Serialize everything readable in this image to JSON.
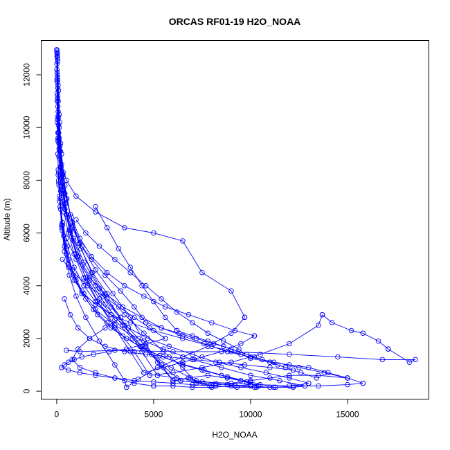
{
  "chart_data": {
    "type": "line",
    "title": "ORCAS RF01-19 H2O_NOAA",
    "xlabel": "H2O_NOAA",
    "ylabel": "Altitude (m)",
    "xlim": [
      -800,
      19200
    ],
    "ylim": [
      -300,
      13300
    ],
    "x_ticks": [
      0,
      5000,
      10000,
      15000
    ],
    "x_tick_labels": [
      "0",
      "5000",
      "10000",
      "15000"
    ],
    "y_ticks": [
      0,
      2000,
      4000,
      6000,
      8000,
      10000,
      12000
    ],
    "y_tick_labels": [
      "0",
      "2000",
      "4000",
      "6000",
      "8000",
      "10000",
      "12000"
    ],
    "grid": false,
    "series_color": "#0000ff",
    "marker": "open-circle",
    "series": [
      {
        "x": [
          5,
          8,
          12,
          20,
          30,
          45,
          60,
          80,
          120,
          180,
          260,
          400,
          650,
          1000,
          1500,
          2200,
          3000,
          3500,
          3600
        ],
        "y": [
          12950,
          12400,
          11800,
          11000,
          10200,
          9500,
          9000,
          8400,
          7800,
          7000,
          6200,
          5300,
          4400,
          3600,
          2800,
          1900,
          1000,
          400,
          150
        ]
      },
      {
        "x": [
          3600,
          4200,
          5200,
          6500,
          7800,
          9000,
          9700
        ],
        "y": [
          150,
          450,
          900,
          1300,
          1700,
          2200,
          2800
        ]
      },
      {
        "x": [
          9700,
          9000,
          7500,
          6500,
          5000,
          3500,
          2000,
          1000,
          500,
          250,
          120,
          60
        ],
        "y": [
          2800,
          3800,
          4500,
          5700,
          6000,
          6200,
          6800,
          7400,
          8000,
          8600,
          9200,
          9800
        ]
      },
      {
        "x": [
          10,
          15,
          25,
          40,
          70,
          110,
          170,
          250,
          380,
          600,
          900,
          1400,
          2100,
          3000,
          4000,
          4800
        ],
        "y": [
          12900,
          12200,
          11300,
          10400,
          9600,
          8900,
          8200,
          7500,
          6800,
          6000,
          5200,
          4300,
          3400,
          2500,
          1500,
          600
        ]
      },
      {
        "x": [
          4800,
          6000,
          7500,
          9000,
          10500,
          12000,
          13500,
          13700
        ],
        "y": [
          600,
          700,
          900,
          1100,
          1400,
          1800,
          2500,
          2900
        ]
      },
      {
        "x": [
          13700,
          14200,
          15200,
          15800,
          16600,
          17100
        ],
        "y": [
          2900,
          2600,
          2300,
          2200,
          1900,
          1600
        ]
      },
      {
        "x": [
          17100,
          18200,
          18500,
          16800,
          14500,
          12000,
          9000,
          6000,
          3000,
          1200,
          500
        ],
        "y": [
          1600,
          1100,
          1200,
          1200,
          1300,
          1400,
          1500,
          1500,
          1550,
          1500,
          1550
        ]
      },
      {
        "x": [
          30,
          50,
          80,
          130,
          200,
          320,
          500,
          800,
          1300,
          2000,
          2900,
          3800,
          4500,
          5200,
          6000
        ],
        "y": [
          12800,
          11900,
          11000,
          10000,
          9100,
          8200,
          7300,
          6400,
          5500,
          4600,
          3700,
          2800,
          1900,
          1100,
          400
        ]
      },
      {
        "x": [
          6000,
          7500,
          9000,
          10500,
          12000,
          13500,
          15000,
          15800
        ],
        "y": [
          400,
          350,
          300,
          250,
          200,
          200,
          250,
          300
        ]
      },
      {
        "x": [
          15800,
          15000,
          14000,
          13000,
          12000,
          11000,
          10000,
          9500
        ],
        "y": [
          300,
          500,
          700,
          900,
          1000,
          1100,
          1250,
          1400
        ]
      },
      {
        "x": [
          9500,
          8000,
          6500,
          5000,
          3800,
          2800,
          2000,
          1400,
          900,
          600,
          400,
          250,
          150,
          80
        ],
        "y": [
          1400,
          1700,
          2000,
          2300,
          2600,
          2900,
          3300,
          3700,
          4200,
          4800,
          5500,
          6300,
          7200,
          8200
        ]
      },
      {
        "x": [
          20,
          35,
          60,
          100,
          160,
          260,
          420,
          700,
          1100,
          1700,
          2500,
          3400,
          4400,
          5400,
          6400
        ],
        "y": [
          12700,
          11800,
          10800,
          9800,
          8800,
          7800,
          6900,
          6000,
          5100,
          4200,
          3300,
          2500,
          1700,
          1000,
          400
        ]
      },
      {
        "x": [
          6400,
          7600,
          8800,
          10000,
          11000,
          12200,
          12800
        ],
        "y": [
          400,
          300,
          250,
          200,
          150,
          150,
          200
        ]
      },
      {
        "x": [
          12800,
          11500,
          10000,
          8500,
          7000,
          5500,
          4200,
          3000,
          2000,
          1300,
          800,
          500,
          300,
          180,
          100
        ],
        "y": [
          200,
          400,
          600,
          900,
          1200,
          1600,
          2000,
          2500,
          3100,
          3800,
          4600,
          5400,
          6300,
          7300,
          8300
        ]
      },
      {
        "x": [
          40,
          70,
          120,
          200,
          330,
          520,
          820,
          1250,
          1850,
          2600,
          3500,
          4500,
          5500,
          6500,
          7200
        ],
        "y": [
          12600,
          11600,
          10500,
          9400,
          8300,
          7300,
          6300,
          5400,
          4500,
          3700,
          2900,
          2200,
          1500,
          900,
          300
        ]
      },
      {
        "x": [
          7200,
          8200,
          9300,
          10300,
          11300,
          12200,
          13000
        ],
        "y": [
          300,
          200,
          150,
          150,
          150,
          200,
          300
        ]
      },
      {
        "x": [
          13000,
          12000,
          10800,
          9500,
          8200,
          7000,
          5800,
          4700,
          3700,
          2800,
          2000,
          1400,
          900,
          550,
          300,
          150
        ],
        "y": [
          300,
          500,
          700,
          900,
          1100,
          1400,
          1700,
          2000,
          2400,
          2900,
          3400,
          4000,
          4700,
          5500,
          6400,
          7400
        ]
      },
      {
        "x": [
          15,
          30,
          55,
          90,
          150,
          250,
          400,
          650,
          1000,
          1500,
          2200,
          3000,
          3900,
          4900,
          5900,
          6900,
          7900
        ],
        "y": [
          12850,
          12000,
          11100,
          10100,
          9100,
          8100,
          7100,
          6100,
          5200,
          4300,
          3500,
          2700,
          2000,
          1400,
          900,
          500,
          200
        ]
      },
      {
        "x": [
          7900,
          9000,
          10000,
          11000,
          12000,
          13500,
          15000
        ],
        "y": [
          200,
          300,
          400,
          500,
          600,
          600,
          500
        ]
      },
      {
        "x": [
          15000,
          13800,
          12500,
          11200,
          10000,
          8800,
          7600,
          6500,
          5400,
          4400,
          3400,
          2500,
          1700,
          1000,
          500
        ],
        "y": [
          500,
          700,
          900,
          1100,
          1300,
          1500,
          1800,
          2100,
          2400,
          2800,
          3200,
          3700,
          4300,
          5000,
          5800
        ]
      },
      {
        "x": [
          25,
          45,
          75,
          125,
          210,
          340,
          550,
          880,
          1350,
          2000,
          2800,
          3700,
          4600,
          5400,
          6000
        ],
        "y": [
          12750,
          11700,
          10600,
          9600,
          8500,
          7500,
          6600,
          5700,
          4800,
          4000,
          3200,
          2400,
          1700,
          1000,
          400
        ]
      },
      {
        "x": [
          6000,
          6800,
          7800,
          8800,
          9800,
          10400
        ],
        "y": [
          400,
          500,
          600,
          500,
          350,
          200
        ]
      },
      {
        "x": [
          10400,
          9500,
          8500,
          7500,
          6500,
          5500,
          4500,
          3600,
          2800,
          2100,
          1500,
          1000,
          600,
          350,
          200,
          100
        ],
        "y": [
          200,
          400,
          600,
          800,
          1000,
          1300,
          1600,
          2000,
          2400,
          2900,
          3500,
          4200,
          5000,
          5900,
          6900,
          7900
        ]
      },
      {
        "x": [
          50,
          90,
          150,
          250,
          420,
          700,
          1150,
          1800,
          2600,
          3500,
          4400,
          5200
        ],
        "y": [
          12500,
          11400,
          10200,
          9000,
          7800,
          6700,
          5600,
          4500,
          3500,
          2500,
          1500,
          600
        ]
      },
      {
        "x": [
          5200,
          6200,
          7200,
          8200,
          9200,
          10200,
          11200
        ],
        "y": [
          600,
          500,
          400,
          300,
          200,
          150,
          150
        ]
      },
      {
        "x": [
          11200,
          10000,
          8800,
          7600,
          6400,
          5300,
          4300,
          3400,
          2600,
          1900,
          1300,
          850,
          500,
          280
        ],
        "y": [
          150,
          350,
          550,
          800,
          1050,
          1350,
          1700,
          2100,
          2600,
          3100,
          3700,
          4400,
          5200,
          6100
        ]
      },
      {
        "x": [
          35,
          60,
          100,
          170,
          280,
          450,
          700,
          1050,
          1550,
          2200,
          3000,
          3800,
          4500
        ],
        "y": [
          12650,
          11500,
          10400,
          9300,
          8200,
          7100,
          6100,
          5100,
          4200,
          3300,
          2400,
          1500,
          700
        ]
      },
      {
        "x": [
          4500,
          5500,
          6500,
          7500,
          8500,
          9500,
          10200
        ],
        "y": [
          700,
          900,
          1100,
          1300,
          1500,
          1800,
          2100
        ]
      },
      {
        "x": [
          10200,
          9200,
          8000,
          6800,
          5600,
          4500,
          3500,
          2600,
          1800,
          1200,
          750,
          420,
          220,
          110
        ],
        "y": [
          2100,
          2300,
          2600,
          2900,
          3200,
          3600,
          4000,
          4500,
          5100,
          5800,
          6600,
          7500,
          8500,
          9500
        ]
      },
      {
        "x": [
          12,
          22,
          38,
          65,
          110,
          185,
          310,
          520,
          860,
          1400,
          2200,
          3300
        ],
        "y": [
          12900,
          12100,
          11200,
          10300,
          9400,
          8500,
          7600,
          6700,
          5800,
          4900,
          3900,
          2800
        ]
      },
      {
        "x": [
          3300,
          2500,
          1700,
          1100,
          800,
          1200,
          2000,
          3000,
          4000,
          5000
        ],
        "y": [
          2800,
          2400,
          2000,
          1600,
          1200,
          900,
          700,
          500,
          300,
          200
        ]
      },
      {
        "x": [
          5000,
          6000,
          7000,
          8000,
          9000,
          10000
        ],
        "y": [
          200,
          200,
          150,
          150,
          200,
          250
        ]
      },
      {
        "x": [
          100,
          200,
          300,
          500,
          800,
          1200,
          1800,
          2500,
          3300,
          4000,
          4600
        ],
        "y": [
          8000,
          7600,
          7200,
          6700,
          6200,
          5600,
          5000,
          4400,
          3800,
          3200,
          2600
        ]
      },
      {
        "x": [
          4600,
          5400,
          6300,
          7200,
          8100,
          9000,
          9800,
          10600,
          11400,
          12200
        ],
        "y": [
          2600,
          2400,
          2200,
          2000,
          1800,
          1600,
          1400,
          1200,
          1000,
          800
        ]
      },
      {
        "x": [
          12200,
          11000,
          9700,
          8400,
          7100,
          5800,
          4600,
          3500,
          2500,
          1700,
          1100,
          700,
          400
        ],
        "y": [
          800,
          900,
          1000,
          1100,
          1200,
          1300,
          1400,
          1500,
          1700,
          2000,
          2400,
          2900,
          3500
        ]
      },
      {
        "x": [
          300,
          600,
          1000,
          1600,
          2400,
          3200,
          4000,
          4800,
          5600
        ],
        "y": [
          5000,
          4700,
          4400,
          4000,
          3600,
          3200,
          2800,
          2400,
          2000
        ]
      },
      {
        "x": [
          5600,
          4600,
          3600,
          2700,
          1900,
          1300,
          900,
          600,
          400,
          250
        ],
        "y": [
          2000,
          1800,
          1600,
          1500,
          1400,
          1300,
          1200,
          1100,
          1000,
          900
        ]
      },
      {
        "x": [
          250,
          600,
          1200,
          2000,
          3000,
          4000,
          5000,
          6000,
          7000,
          8000
        ],
        "y": [
          900,
          800,
          700,
          600,
          500,
          400,
          350,
          300,
          250,
          200
        ]
      },
      {
        "x": [
          2000,
          2600,
          3200,
          3800,
          4400,
          5000,
          5600,
          6200
        ],
        "y": [
          7000,
          6200,
          5400,
          4700,
          4000,
          3400,
          2800,
          2300
        ]
      },
      {
        "x": [
          6200,
          7000,
          7800,
          8600,
          9400,
          10200,
          11000,
          11800,
          12600,
          13400
        ],
        "y": [
          2300,
          2100,
          1900,
          1700,
          1500,
          1300,
          1100,
          900,
          700,
          500
        ]
      },
      {
        "x": [
          1000,
          1500,
          2200,
          3000,
          3800,
          4600,
          5400,
          6200,
          7000,
          7800,
          8600,
          9400
        ],
        "y": [
          6500,
          6000,
          5500,
          5000,
          4500,
          4000,
          3500,
          3000,
          2600,
          2200,
          1900,
          1600
        ]
      }
    ]
  }
}
